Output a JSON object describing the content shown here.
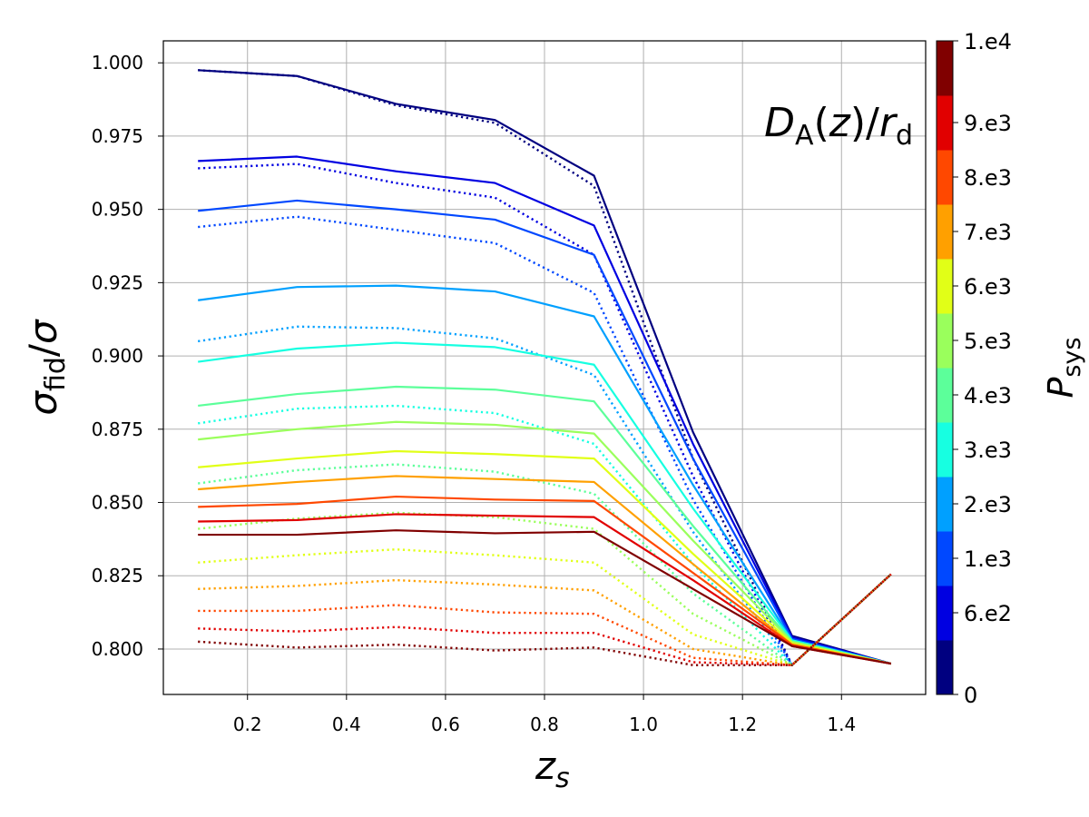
{
  "chart_data": {
    "type": "line",
    "xlabel": "z_s",
    "ylabel": "σ_fid/σ",
    "annotation": "D_A(z)/r_d",
    "xlim": [
      0.03,
      1.57
    ],
    "ylim": [
      0.7845,
      1.0075
    ],
    "xticks": [
      0.2,
      0.4,
      0.6,
      0.8,
      1.0,
      1.2,
      1.4
    ],
    "xtick_labels": [
      "0.2",
      "0.4",
      "0.6",
      "0.8",
      "1.0",
      "1.2",
      "1.4"
    ],
    "yticks": [
      0.8,
      0.825,
      0.85,
      0.875,
      0.9,
      0.925,
      0.95,
      0.975,
      1.0
    ],
    "ytick_labels": [
      "0.800",
      "0.825",
      "0.850",
      "0.875",
      "0.900",
      "0.925",
      "0.950",
      "0.975",
      "1.000"
    ],
    "grid": true,
    "colorbar": {
      "label": "P_sys",
      "colors": [
        "#000080",
        "#0000e1",
        "#0048ff",
        "#00a0ff",
        "#17ffe1",
        "#5cff9a",
        "#9aff5c",
        "#e1ff17",
        "#ffa000",
        "#ff4800",
        "#e10000",
        "#800000"
      ],
      "tick_labels": [
        "0",
        "6.e2",
        "1.e3",
        "2.e3",
        "3.e3",
        "4.e3",
        "5.e3",
        "6.e3",
        "7.e3",
        "8.e3",
        "9.e3",
        "1.e4"
      ]
    },
    "x": [
      0.1,
      0.3,
      0.5,
      0.7,
      0.9,
      1.1,
      1.3,
      1.5
    ],
    "series": [
      {
        "color": "#000080",
        "style": "solid",
        "values": [
          0.9975,
          0.9955,
          0.986,
          0.9805,
          0.9615,
          0.874,
          0.8045,
          0.795
        ]
      },
      {
        "color": "#000080",
        "style": "dotted",
        "values": [
          0.9975,
          0.9955,
          0.9855,
          0.9795,
          0.958,
          0.865,
          0.7945,
          0.8255
        ]
      },
      {
        "color": "#0000e1",
        "style": "solid",
        "values": [
          0.9665,
          0.968,
          0.963,
          0.959,
          0.9445,
          0.87,
          0.804,
          0.795
        ]
      },
      {
        "color": "#0000e1",
        "style": "dotted",
        "values": [
          0.964,
          0.9655,
          0.959,
          0.954,
          0.9345,
          0.859,
          0.7945,
          0.8255
        ]
      },
      {
        "color": "#0048ff",
        "style": "solid",
        "values": [
          0.9495,
          0.953,
          0.95,
          0.9465,
          0.9345,
          0.865,
          0.8035,
          0.795
        ]
      },
      {
        "color": "#0048ff",
        "style": "dotted",
        "values": [
          0.944,
          0.9475,
          0.943,
          0.9385,
          0.9215,
          0.851,
          0.7945,
          0.8255
        ]
      },
      {
        "color": "#00a0ff",
        "style": "solid",
        "values": [
          0.919,
          0.9235,
          0.924,
          0.922,
          0.9135,
          0.856,
          0.803,
          0.795
        ]
      },
      {
        "color": "#00a0ff",
        "style": "dotted",
        "values": [
          0.905,
          0.91,
          0.9095,
          0.906,
          0.8935,
          0.84,
          0.7945,
          0.8255
        ]
      },
      {
        "color": "#17ffe1",
        "style": "solid",
        "values": [
          0.898,
          0.9025,
          0.9045,
          0.903,
          0.897,
          0.848,
          0.803,
          0.795
        ]
      },
      {
        "color": "#17ffe1",
        "style": "dotted",
        "values": [
          0.877,
          0.882,
          0.883,
          0.8805,
          0.87,
          0.829,
          0.7945,
          0.8255
        ]
      },
      {
        "color": "#5cff9a",
        "style": "solid",
        "values": [
          0.883,
          0.887,
          0.8895,
          0.8885,
          0.8845,
          0.842,
          0.8025,
          0.795
        ]
      },
      {
        "color": "#5cff9a",
        "style": "dotted",
        "values": [
          0.8565,
          0.861,
          0.863,
          0.8605,
          0.853,
          0.819,
          0.7945,
          0.8255
        ]
      },
      {
        "color": "#9aff5c",
        "style": "solid",
        "values": [
          0.8715,
          0.875,
          0.8775,
          0.8765,
          0.8735,
          0.837,
          0.8025,
          0.795
        ]
      },
      {
        "color": "#9aff5c",
        "style": "dotted",
        "values": [
          0.841,
          0.8445,
          0.8465,
          0.845,
          0.841,
          0.812,
          0.7945,
          0.8255
        ]
      },
      {
        "color": "#e1ff17",
        "style": "solid",
        "values": [
          0.862,
          0.865,
          0.8675,
          0.8665,
          0.865,
          0.8325,
          0.802,
          0.795
        ]
      },
      {
        "color": "#e1ff17",
        "style": "dotted",
        "values": [
          0.8295,
          0.832,
          0.834,
          0.832,
          0.8295,
          0.805,
          0.7945,
          0.8255
        ]
      },
      {
        "color": "#ffa000",
        "style": "solid",
        "values": [
          0.8545,
          0.857,
          0.859,
          0.858,
          0.857,
          0.829,
          0.8015,
          0.795
        ]
      },
      {
        "color": "#ffa000",
        "style": "dotted",
        "values": [
          0.8205,
          0.8215,
          0.8235,
          0.822,
          0.82,
          0.8,
          0.7945,
          0.8255
        ]
      },
      {
        "color": "#ff4800",
        "style": "solid",
        "values": [
          0.8485,
          0.8495,
          0.852,
          0.851,
          0.8505,
          0.826,
          0.8015,
          0.795
        ]
      },
      {
        "color": "#ff4800",
        "style": "dotted",
        "values": [
          0.813,
          0.813,
          0.815,
          0.8125,
          0.812,
          0.797,
          0.7945,
          0.8255
        ]
      },
      {
        "color": "#e10000",
        "style": "solid",
        "values": [
          0.8435,
          0.844,
          0.846,
          0.8455,
          0.845,
          0.8235,
          0.801,
          0.795
        ]
      },
      {
        "color": "#e10000",
        "style": "dotted",
        "values": [
          0.807,
          0.806,
          0.8075,
          0.8055,
          0.8055,
          0.7955,
          0.7945,
          0.8255
        ]
      },
      {
        "color": "#800000",
        "style": "solid",
        "values": [
          0.839,
          0.839,
          0.8405,
          0.8395,
          0.84,
          0.8205,
          0.801,
          0.795
        ]
      },
      {
        "color": "#800000",
        "style": "dotted",
        "values": [
          0.8025,
          0.8005,
          0.8015,
          0.7995,
          0.8005,
          0.7945,
          0.7945,
          0.8255
        ]
      }
    ]
  }
}
